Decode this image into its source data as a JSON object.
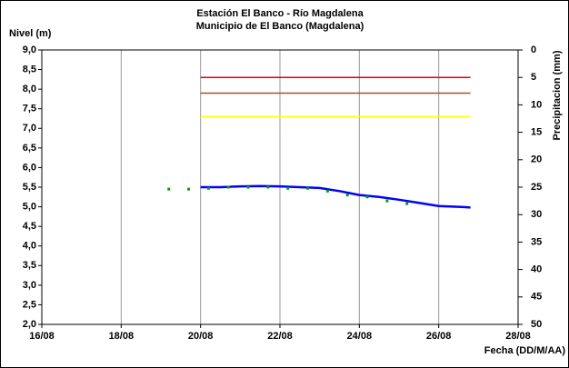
{
  "chart_data": {
    "type": "line",
    "title": "Estación El Banco - Río Magdalena",
    "subtitle": "Municipio de El Banco (Magdalena)",
    "ylabel": "Nivel (m)",
    "y2label": "Precipitacion (mm)",
    "xlabel": "Fecha (DD/M/AA)",
    "xlim": [
      16,
      28
    ],
    "xticks": [
      {
        "value": 16,
        "label": "16/08"
      },
      {
        "value": 18,
        "label": "18/08"
      },
      {
        "value": 20,
        "label": "20/08"
      },
      {
        "value": 22,
        "label": "22/08"
      },
      {
        "value": 24,
        "label": "24/08"
      },
      {
        "value": 26,
        "label": "26/08"
      },
      {
        "value": 28,
        "label": "28/08"
      }
    ],
    "ylim": [
      2,
      9
    ],
    "yticks": [
      {
        "value": 2,
        "label": "2,0"
      },
      {
        "value": 2.5,
        "label": "2,5"
      },
      {
        "value": 3,
        "label": "3,0"
      },
      {
        "value": 3.5,
        "label": "3,5"
      },
      {
        "value": 4,
        "label": "4,0"
      },
      {
        "value": 4.5,
        "label": "4,5"
      },
      {
        "value": 5,
        "label": "5,0"
      },
      {
        "value": 5.5,
        "label": "5,5"
      },
      {
        "value": 6,
        "label": "6,0"
      },
      {
        "value": 6.5,
        "label": "6,5"
      },
      {
        "value": 7,
        "label": "7,0"
      },
      {
        "value": 7.5,
        "label": "7,5"
      },
      {
        "value": 8,
        "label": "8,0"
      },
      {
        "value": 8.5,
        "label": "8,5"
      },
      {
        "value": 9,
        "label": "9,0"
      }
    ],
    "y2lim": [
      50,
      0
    ],
    "y2ticks": [
      0,
      5,
      10,
      15,
      20,
      25,
      30,
      35,
      40,
      45,
      50
    ],
    "xgrid": true,
    "hline_x": [
      20,
      26.8
    ],
    "hlines": [
      {
        "value": 8.3,
        "color": "#e00000"
      },
      {
        "value": 7.9,
        "color": "#a0522d"
      },
      {
        "value": 7.3,
        "color": "#ffff00"
      }
    ],
    "series": [
      {
        "color": "#0000ff",
        "marker": "none",
        "x": [
          20,
          20.5,
          21,
          21.5,
          22,
          22.5,
          23,
          23.5,
          24,
          24.5,
          25,
          25.5,
          26,
          26.5,
          26.8
        ],
        "values": [
          5.5,
          5.5,
          5.52,
          5.53,
          5.52,
          5.5,
          5.48,
          5.4,
          5.3,
          5.25,
          5.18,
          5.1,
          5.02,
          5.0,
          4.98
        ]
      },
      {
        "color": "#00a000",
        "marker": "square",
        "x": [
          19.2,
          19.7,
          20.2,
          20.7,
          21.2,
          21.7,
          22.2,
          22.7,
          23.2,
          23.7,
          24.2,
          24.7,
          25.2
        ],
        "values": [
          5.45,
          5.45,
          5.47,
          5.5,
          5.5,
          5.5,
          5.47,
          5.47,
          5.4,
          5.3,
          5.25,
          5.15,
          5.08
        ]
      }
    ]
  }
}
